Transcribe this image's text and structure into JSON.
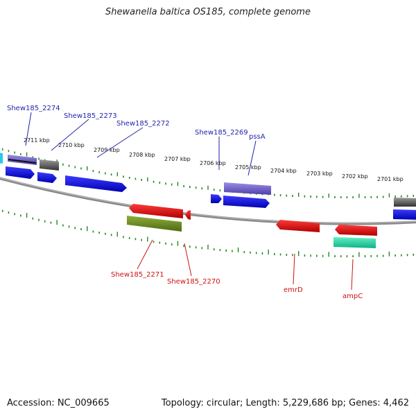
{
  "title": "Shewanella baltica OS185, complete genome",
  "footer": {
    "accession": "Accession: NC_009665",
    "topology": "Topology: circular; Length: 5,229,686 bp; Genes: 4,462"
  },
  "scale_labels": [
    "2711 kbp",
    "2710 kbp",
    "2709 kbp",
    "2708 kbp",
    "2707 kbp",
    "2706 kbp",
    "2705 kbp",
    "2704 kbp",
    "2703 kbp",
    "2702 kbp",
    "2701 kbp"
  ],
  "forward_gene_labels": [
    "Shew185_2274",
    "Shew185_2273",
    "Shew185_2272",
    "Shew185_2269",
    "pssA"
  ],
  "reverse_gene_labels": [
    "Shew185_2271",
    "Shew185_2270",
    "emrD",
    "ampC"
  ],
  "colors": {
    "forward_label": "#2222aa",
    "reverse_label": "#cc1111",
    "backbone": "#888888",
    "ticks": "#228822",
    "gene_blue": "#0000ee",
    "gene_purple": "#7766cc",
    "gene_red": "#ee0000",
    "gene_olive": "#6b8e23",
    "gene_teal": "#22ddaa",
    "gene_gray": "#666666",
    "gene_cyan": "#22ccee"
  }
}
